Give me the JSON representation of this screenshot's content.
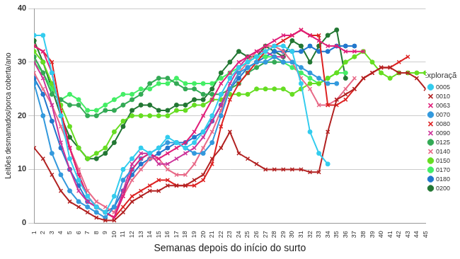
{
  "chart_data": {
    "type": "line",
    "x_label": "Semanas depois do início do surto",
    "y_label": "Leitões desmamados/porca coberta/ano",
    "legend_title": "Exploração",
    "legend": "right",
    "grid": true,
    "ylim": [
      0,
      40
    ],
    "yticks": [
      0,
      10,
      20,
      30,
      40
    ],
    "categories": [
      1,
      2,
      3,
      4,
      5,
      6,
      7,
      8,
      9,
      10,
      11,
      12,
      13,
      14,
      15,
      16,
      17,
      18,
      19,
      20,
      21,
      22,
      23,
      24,
      25,
      26,
      27,
      28,
      29,
      30,
      31,
      32,
      33,
      34,
      35,
      36,
      37,
      38,
      39,
      40,
      41,
      42,
      43,
      44,
      45
    ],
    "series": [
      {
        "name": "0005",
        "color": "#33ccee",
        "marker": "circle",
        "values": [
          35,
          35,
          28,
          20,
          12,
          8,
          5,
          3,
          2,
          5,
          10,
          12,
          14,
          13,
          14,
          16,
          15,
          14,
          15,
          17,
          20,
          24,
          27,
          29,
          30,
          31,
          32,
          33,
          33,
          32,
          26,
          17,
          13,
          11,
          null,
          null,
          null,
          null,
          null,
          null,
          null,
          null,
          null,
          null,
          null
        ]
      },
      {
        "name": "0010",
        "color": "#b22222",
        "marker": "x",
        "values": [
          14,
          12,
          9,
          6,
          4,
          3,
          2,
          1,
          0.5,
          0.5,
          2,
          4,
          5,
          6,
          6,
          7,
          7,
          7,
          8,
          9,
          12,
          14,
          17,
          13,
          12,
          11,
          10,
          10,
          10,
          10,
          10,
          9.5,
          9.5,
          17,
          23,
          24,
          25,
          27,
          28,
          29,
          29,
          28,
          28,
          27,
          25
        ]
      },
      {
        "name": "0063",
        "color": "#e0207a",
        "marker": "x",
        "values": [
          33,
          32,
          28,
          20,
          14,
          9,
          5,
          3,
          2,
          1,
          5,
          10,
          12,
          13,
          12,
          13,
          14,
          15,
          17,
          20,
          23,
          26,
          28,
          30,
          31,
          32,
          33,
          34,
          35,
          35,
          36,
          35,
          34,
          33,
          33,
          32,
          32,
          32,
          null,
          null,
          null,
          null,
          null,
          null,
          null
        ]
      },
      {
        "name": "0070",
        "color": "#3399dd",
        "marker": "circle",
        "values": [
          26,
          20,
          13,
          9,
          6,
          4,
          3,
          2,
          1,
          3,
          8,
          10,
          12,
          13,
          14,
          15,
          15,
          14,
          13,
          13,
          15,
          20,
          25,
          28,
          29,
          30,
          30,
          31,
          30,
          30,
          29,
          28,
          27,
          26,
          26,
          null,
          null,
          null,
          null,
          null,
          null,
          null,
          null,
          null,
          null
        ]
      },
      {
        "name": "0080",
        "color": "#dd2222",
        "marker": "x",
        "values": [
          33,
          32,
          30,
          21,
          14,
          9,
          5,
          3,
          2,
          1,
          3,
          5,
          6,
          7,
          8,
          8,
          7,
          7,
          7,
          8,
          11,
          18,
          23,
          26,
          28,
          30,
          32,
          33,
          34,
          35,
          36,
          35,
          35,
          22,
          22,
          23,
          25,
          27,
          28,
          29,
          29,
          30,
          31,
          null,
          null
        ]
      },
      {
        "name": "0090",
        "color": "#cc3399",
        "marker": "x",
        "values": [
          30,
          27,
          22,
          15,
          10,
          6,
          4,
          3,
          2,
          1,
          6,
          11,
          13,
          13,
          11,
          11,
          12,
          13,
          14,
          16,
          19,
          22,
          26,
          29,
          31,
          32,
          32,
          31,
          31,
          null,
          null,
          null,
          null,
          null,
          null,
          null,
          null,
          null,
          null,
          null,
          null,
          null,
          null,
          null,
          null
        ]
      },
      {
        "name": "0125",
        "color": "#33aa55",
        "marker": "circle",
        "values": [
          31,
          28,
          24,
          23,
          22,
          22,
          20,
          20,
          21,
          21,
          22,
          23,
          24,
          26,
          27,
          27,
          26,
          25,
          25,
          24,
          24,
          24,
          25,
          26,
          28,
          29,
          30,
          30,
          30,
          null,
          null,
          null,
          null,
          null,
          null,
          null,
          null,
          null,
          null,
          null,
          null,
          null,
          null,
          null,
          null
        ]
      },
      {
        "name": "0140",
        "color": "#e86a88",
        "marker": "x",
        "values": [
          28,
          25,
          22,
          18,
          14,
          10,
          6,
          4,
          3,
          2,
          5,
          8,
          10,
          12,
          12,
          10,
          9,
          9,
          11,
          14,
          17,
          21,
          25,
          28,
          30,
          32,
          33,
          33,
          32,
          30,
          27,
          25,
          22,
          22,
          23,
          25,
          27,
          null,
          null,
          null,
          null,
          null,
          null,
          null,
          null
        ]
      },
      {
        "name": "0150",
        "color": "#66dd22",
        "marker": "circle",
        "values": [
          32,
          30,
          26,
          22,
          18,
          14,
          12,
          13,
          14,
          17,
          19,
          20,
          20,
          20,
          20,
          20,
          21,
          21,
          22,
          22,
          23,
          23,
          24,
          24,
          24,
          25,
          25,
          25,
          25,
          24,
          25,
          26,
          26,
          27,
          28,
          30,
          31,
          32,
          30,
          28,
          27,
          28,
          28,
          28,
          28
        ]
      },
      {
        "name": "0170",
        "color": "#44ee66",
        "marker": "circle",
        "values": [
          30,
          28,
          25,
          23,
          24,
          23,
          21,
          21,
          22,
          23,
          24,
          24,
          25,
          25,
          26,
          26,
          27,
          26,
          26,
          26,
          26,
          27,
          28,
          29,
          30,
          31,
          31,
          31,
          30,
          29,
          28,
          27,
          26,
          27,
          28,
          28,
          null,
          null,
          null,
          null,
          null,
          null,
          null,
          null,
          null
        ]
      },
      {
        "name": "0180",
        "color": "#2277cc",
        "marker": "circle",
        "values": [
          27,
          24,
          19,
          14,
          10,
          7,
          4,
          3,
          2,
          3,
          6,
          9,
          11,
          12,
          13,
          14,
          15,
          15,
          16,
          17,
          19,
          22,
          25,
          27,
          29,
          30,
          31,
          32,
          32,
          32,
          32,
          33,
          32,
          32,
          33,
          33,
          33,
          null,
          null,
          null,
          null,
          null,
          null,
          null,
          null
        ]
      },
      {
        "name": "0200",
        "color": "#227733",
        "marker": "circle",
        "values": [
          34,
          30,
          25,
          20,
          16,
          14,
          12,
          12,
          13,
          15,
          18,
          21,
          22,
          22,
          21,
          21,
          22,
          22,
          23,
          23,
          25,
          28,
          30,
          32,
          31,
          31,
          33,
          32,
          31,
          34,
          33,
          30,
          33,
          35,
          36,
          27,
          null,
          null,
          null,
          null,
          null,
          null,
          null,
          null,
          null
        ]
      }
    ]
  }
}
